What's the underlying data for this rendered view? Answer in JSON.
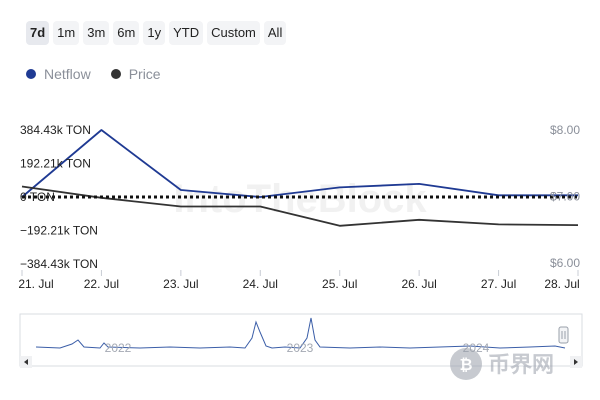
{
  "range_buttons": [
    {
      "label": "7d",
      "active": true
    },
    {
      "label": "1m",
      "active": false
    },
    {
      "label": "3m",
      "active": false
    },
    {
      "label": "6m",
      "active": false
    },
    {
      "label": "1y",
      "active": false
    },
    {
      "label": "YTD",
      "active": false
    },
    {
      "label": "Custom",
      "active": false
    },
    {
      "label": "All",
      "active": false
    }
  ],
  "colors": {
    "netflow": "#1f3a93",
    "price": "#333333",
    "zero_line": "#111111",
    "grid": "#e6e8ec",
    "navigator_line": "#3b5ea8"
  },
  "icons": {
    "left_arrow": "triangle-left-icon",
    "right_arrow": "triangle-right-icon",
    "handle": "navigator-handle-icon"
  },
  "watermark": "IntoTheBlock",
  "corner_logo": "币界网",
  "chart_data": {
    "type": "line",
    "categories": [
      "21. Jul",
      "22. Jul",
      "23. Jul",
      "24. Jul",
      "25. Jul",
      "26. Jul",
      "27. Jul",
      "28. Jul"
    ],
    "series": [
      {
        "name": "Netflow",
        "axis": "left",
        "values": [
          0,
          384430,
          40000,
          0,
          55000,
          75000,
          10000,
          10000
        ]
      },
      {
        "name": "Price",
        "axis": "right",
        "values": [
          7.15,
          6.98,
          6.85,
          6.85,
          6.56,
          6.65,
          6.58,
          6.57
        ]
      }
    ],
    "left_axis": {
      "ticks": [
        {
          "value": 384430,
          "label": "384.43k TON"
        },
        {
          "value": 192210,
          "label": "192.21k TON"
        },
        {
          "value": 0,
          "label": "0 TON"
        },
        {
          "value": -192210,
          "label": "−192.21k TON"
        },
        {
          "value": -384430,
          "label": "−384.43k TON"
        }
      ],
      "ylim": [
        -384430,
        384430
      ]
    },
    "right_axis": {
      "ticks": [
        {
          "value": 8.0,
          "label": "$8.00"
        },
        {
          "value": 7.0,
          "label": "$7.00"
        },
        {
          "value": 6.0,
          "label": "$6.00"
        }
      ],
      "ylim": [
        6.0,
        8.0
      ]
    },
    "zero_line": true,
    "navigator": {
      "labels": [
        "2022",
        "2023",
        "2024"
      ]
    },
    "legend_position": "top-left",
    "grid": false
  }
}
